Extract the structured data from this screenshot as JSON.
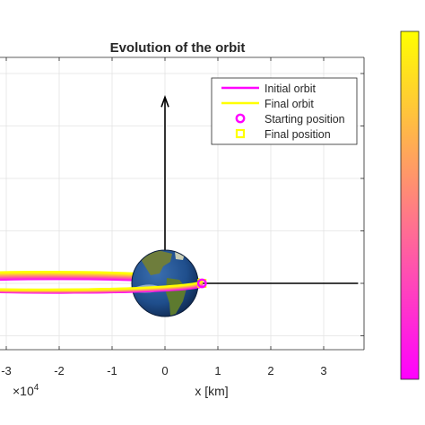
{
  "chart_data": {
    "type": "line",
    "title": "Evolution of the orbit",
    "xlabel": "x [km]",
    "ylabel": "",
    "x_exponent_label": "×10",
    "x_exponent_power": "4",
    "xlim": [
      -3.1,
      3.7
    ],
    "ylim": [
      -1.3,
      4.25
    ],
    "x_ticks": [
      -3,
      -2,
      -1,
      0,
      1,
      2,
      3
    ],
    "x_tick_labels": [
      "-3",
      "-2",
      "-1",
      "0",
      "1",
      "2",
      "3"
    ],
    "y_gridlines": [
      -1,
      0,
      1,
      2,
      3,
      4
    ],
    "grid": true,
    "legend": {
      "placement": "top-right",
      "entries": [
        {
          "label": "Initial orbit",
          "marker": "line",
          "color": "#ff00ff"
        },
        {
          "label": "Final orbit",
          "marker": "line",
          "color": "#ffff00"
        },
        {
          "label": "Starting position",
          "marker": "circle",
          "color": "#ff00ff"
        },
        {
          "label": "Final position",
          "marker": "square",
          "color": "#ffff00"
        }
      ]
    },
    "series": [
      {
        "name": "Initial orbit",
        "color": "#ff00ff",
        "orbit": {
          "center_x": -2.0,
          "center_y": -0.05,
          "semi_x": 2.7,
          "semi_y": 0.13
        }
      },
      {
        "name": "Final orbit",
        "color": "#ffff00",
        "orbit": {
          "center_x": -2.25,
          "center_y": 0.05,
          "semi_x": 2.95,
          "semi_y": 0.17
        }
      }
    ],
    "starting_position": {
      "x": 0.7,
      "y": 0.0
    },
    "final_position": {
      "x": 0.7,
      "y": 0.0
    },
    "earth": {
      "x": 0.0,
      "y": 0.0,
      "radius": 0.63
    },
    "axes_arrows": [
      {
        "name": "y-axis-arrow",
        "from": [
          0,
          0
        ],
        "to": [
          0,
          3.55
        ]
      },
      {
        "name": "x-axis-arrow",
        "from": [
          0,
          0
        ],
        "to": [
          3.65,
          0
        ]
      }
    ],
    "colorbar": {
      "gradient": [
        "#ff00ff",
        "#ff8080",
        "#ffff00"
      ]
    }
  }
}
